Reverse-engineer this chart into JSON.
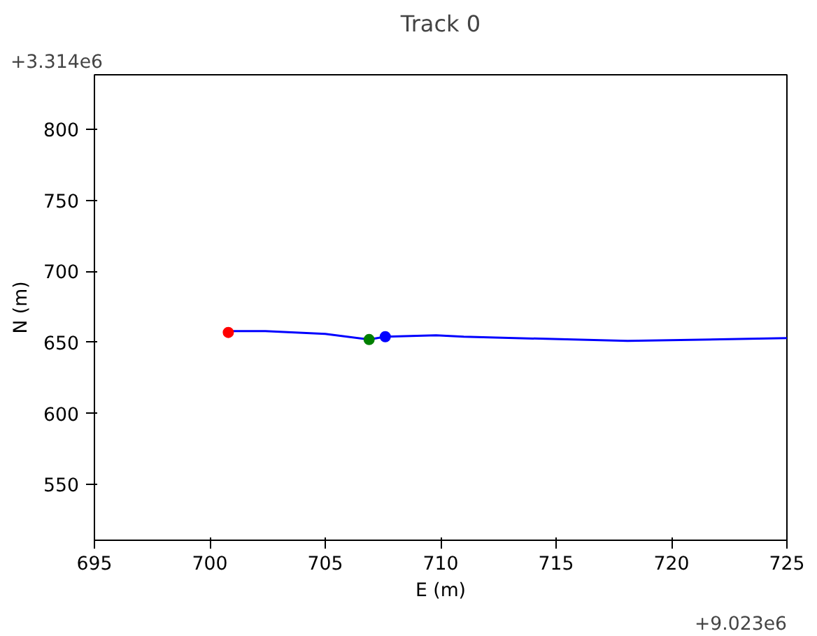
{
  "chart_data": {
    "type": "line",
    "title": "Track 0",
    "xlabel": "E (m)",
    "ylabel": "N (m)",
    "annotations": [
      "+3.314e6",
      "+9.023e6"
    ],
    "xlim": [
      695,
      725
    ],
    "xticks": [
      695,
      700,
      705,
      710,
      715,
      720,
      725
    ],
    "ylim": [
      510.7,
      838.4
    ],
    "yticks": [
      550,
      600,
      650,
      700,
      750,
      800
    ],
    "grid": false,
    "series": [
      {
        "color": "#0000ff",
        "x": [
          700.8,
          702.4,
          705,
          706.9,
          707.6,
          709.8,
          711,
          718.1,
          725
        ],
        "values": [
          658,
          658,
          656,
          652,
          654,
          655,
          654,
          651,
          653
        ]
      },
      {
        "type": "scatter",
        "marker": "circle",
        "color": "#ff0000",
        "x": [
          700.8
        ],
        "values": [
          657
        ]
      },
      {
        "type": "scatter",
        "marker": "circle",
        "color": "#008000",
        "x": [
          706.9
        ],
        "values": [
          652
        ]
      },
      {
        "type": "scatter",
        "marker": "circle",
        "color": "#0000ff",
        "x": [
          707.6
        ],
        "values": [
          654
        ]
      }
    ]
  }
}
